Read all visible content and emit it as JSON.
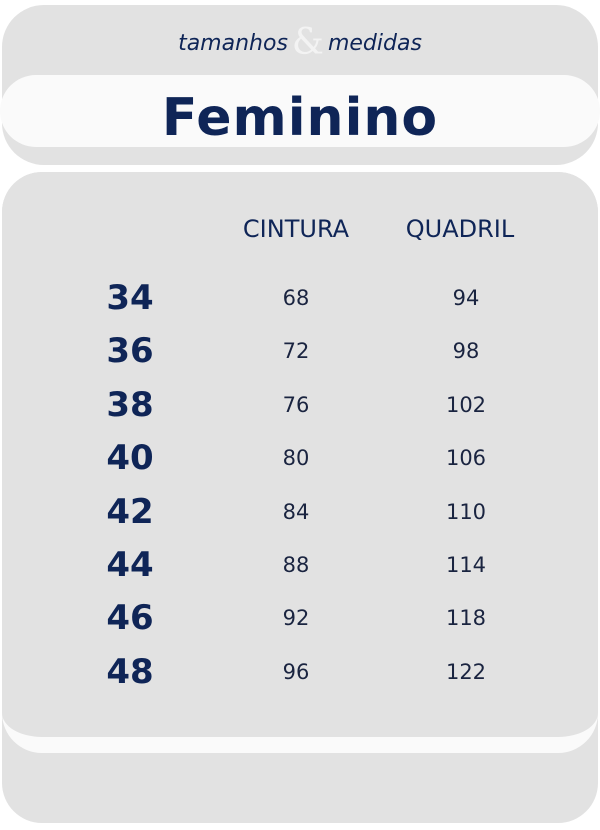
{
  "header": {
    "subtitle_left": "tamanhos",
    "subtitle_amp": "&",
    "subtitle_right": "medidas",
    "title": "Feminino"
  },
  "table": {
    "columns": [
      "CINTURA",
      "QUADRIL"
    ],
    "rows": [
      {
        "size": "34",
        "cintura": "68",
        "quadril": "94"
      },
      {
        "size": "36",
        "cintura": "72",
        "quadril": "98"
      },
      {
        "size": "38",
        "cintura": "76",
        "quadril": "102"
      },
      {
        "size": "40",
        "cintura": "80",
        "quadril": "106"
      },
      {
        "size": "42",
        "cintura": "84",
        "quadril": "110"
      },
      {
        "size": "44",
        "cintura": "88",
        "quadril": "114"
      },
      {
        "size": "46",
        "cintura": "92",
        "quadril": "118"
      },
      {
        "size": "48",
        "cintura": "96",
        "quadril": "122"
      }
    ]
  },
  "colors": {
    "navy": "#0f2557",
    "card_gray": "#e2e2e2",
    "band_white": "#fafafa"
  }
}
